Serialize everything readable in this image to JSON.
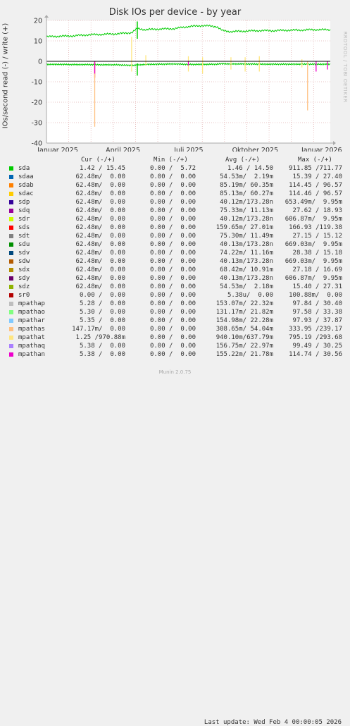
{
  "title": "Disk IOs per device - by year",
  "ylabel": "IOs/second read (-) / write (+)",
  "watermark": "RRDTOOL / TOBI OETIKER",
  "legend_header": {
    "cur": "Cur (-/+)",
    "min": "Min (-/+)",
    "avg": "Avg (-/+)",
    "max": "Max (-/+)"
  },
  "legend": [
    {
      "name": "sda",
      "color": "#00cc00",
      "cur": "1.42 / 15.45",
      "min": "0.00 /  5.72",
      "avg": "1.46 / 14.50",
      "max": "911.85 /711.77"
    },
    {
      "name": "sdaa",
      "color": "#0066b3",
      "cur": "62.48m/  0.00",
      "min": "0.00 /  0.00",
      "avg": "54.53m/  2.19m",
      "max": "15.39 / 27.40"
    },
    {
      "name": "sdab",
      "color": "#ff8000",
      "cur": "62.48m/  0.00",
      "min": "0.00 /  0.00",
      "avg": "85.19m/ 60.35m",
      "max": "114.45 / 96.57"
    },
    {
      "name": "sdac",
      "color": "#ffcc00",
      "cur": "62.48m/  0.00",
      "min": "0.00 /  0.00",
      "avg": "85.13m/ 60.27m",
      "max": "114.46 / 96.57"
    },
    {
      "name": "sdp",
      "color": "#330099",
      "cur": "62.48m/  0.00",
      "min": "0.00 /  0.00",
      "avg": "40.12m/173.28n",
      "max": "653.49m/  9.95m"
    },
    {
      "name": "sdq",
      "color": "#990099",
      "cur": "62.48m/  0.00",
      "min": "0.00 /  0.00",
      "avg": "75.33m/ 11.13m",
      "max": "27.62 / 18.93"
    },
    {
      "name": "sdr",
      "color": "#ccff00",
      "cur": "62.48m/  0.00",
      "min": "0.00 /  0.00",
      "avg": "40.12m/173.28n",
      "max": "606.87m/  9.95m"
    },
    {
      "name": "sds",
      "color": "#ff0000",
      "cur": "62.48m/  0.00",
      "min": "0.00 /  0.00",
      "avg": "159.65m/ 27.01m",
      "max": "166.93 /119.38"
    },
    {
      "name": "sdt",
      "color": "#808080",
      "cur": "62.48m/  0.00",
      "min": "0.00 /  0.00",
      "avg": "75.30m/ 11.49m",
      "max": "27.15 / 15.12"
    },
    {
      "name": "sdu",
      "color": "#008f00",
      "cur": "62.48m/  0.00",
      "min": "0.00 /  0.00",
      "avg": "40.13m/173.28n",
      "max": "669.03m/  9.95m"
    },
    {
      "name": "sdv",
      "color": "#00487d",
      "cur": "62.48m/  0.00",
      "min": "0.00 /  0.00",
      "avg": "74.22m/ 11.16m",
      "max": "28.38 / 15.18"
    },
    {
      "name": "sdw",
      "color": "#b35a00",
      "cur": "62.48m/  0.00",
      "min": "0.00 /  0.00",
      "avg": "40.13m/173.28n",
      "max": "669.03m/  9.95m"
    },
    {
      "name": "sdx",
      "color": "#b38f00",
      "cur": "62.48m/  0.00",
      "min": "0.00 /  0.00",
      "avg": "68.42m/ 10.91m",
      "max": "27.18 / 16.69"
    },
    {
      "name": "sdy",
      "color": "#6b006b",
      "cur": "62.48m/  0.00",
      "min": "0.00 /  0.00",
      "avg": "40.13m/173.28n",
      "max": "606.87m/  9.95m"
    },
    {
      "name": "sdz",
      "color": "#8fb300",
      "cur": "62.48m/  0.00",
      "min": "0.00 /  0.00",
      "avg": "54.53m/  2.18m",
      "max": "15.40 / 27.31"
    },
    {
      "name": "sr0",
      "color": "#b30000",
      "cur": "0.00 /  0.00",
      "min": "0.00 /  0.00",
      "avg": "5.38u/  0.00",
      "max": "100.88m/  0.00"
    },
    {
      "name": "mpathap",
      "color": "#bebebe",
      "cur": "5.28 /  0.00",
      "min": "0.00 /  0.00",
      "avg": "153.07m/ 22.32m",
      "max": "97.84 / 30.40"
    },
    {
      "name": "mpathao",
      "color": "#80ff80",
      "cur": "5.30 /  0.00",
      "min": "0.00 /  0.00",
      "avg": "131.17m/ 21.82m",
      "max": "97.58 / 33.38"
    },
    {
      "name": "mpathar",
      "color": "#80c9ff",
      "cur": "5.35 /  0.00",
      "min": "0.00 /  0.00",
      "avg": "154.98m/ 22.28m",
      "max": "97.93 / 37.87"
    },
    {
      "name": "mpathas",
      "color": "#ffc080",
      "cur": "147.17m/  0.00",
      "min": "0.00 /  0.00",
      "avg": "308.65m/ 54.04m",
      "max": "333.95 /239.17"
    },
    {
      "name": "mpathat",
      "color": "#ffe680",
      "cur": "1.25 /970.88m",
      "min": "0.00 /  0.00",
      "avg": "940.10m/637.79m",
      "max": "795.19 /293.68"
    },
    {
      "name": "mpathaq",
      "color": "#aa80ff",
      "cur": "5.38 /  0.00",
      "min": "0.00 /  0.00",
      "avg": "156.75m/ 22.97m",
      "max": "99.49 / 30.25"
    },
    {
      "name": "mpathan",
      "color": "#ee00cc",
      "cur": "5.38 /  0.00",
      "min": "0.00 /  0.00",
      "avg": "155.22m/ 21.78m",
      "max": "114.74 / 30.56"
    }
  ],
  "last_update": "Last update: Wed Feb  4 00:00:05 2026",
  "munin_version": "Munin 2.0.75",
  "chart_data": {
    "type": "line",
    "title": "Disk IOs per device - by year",
    "ylabel": "IOs/second read (-) / write (+)",
    "ylim": [
      -40,
      20
    ],
    "yticks": [
      -40,
      -30,
      -20,
      -10,
      0,
      10,
      20
    ],
    "xticks": [
      "Januar 2025",
      "April 2025",
      "Juli 2025",
      "Oktober 2025",
      "Januar 2026"
    ],
    "grid": true,
    "series": [
      {
        "name": "sda",
        "color": "#00cc00",
        "x": [
          0,
          0.05,
          0.1,
          0.15,
          0.2,
          0.25,
          0.3,
          0.32,
          0.35,
          0.4,
          0.45,
          0.5,
          0.55,
          0.6,
          0.62,
          0.65,
          0.7,
          0.75,
          0.8,
          0.85,
          0.9,
          0.95,
          1.0
        ],
        "write": [
          12,
          12.3,
          12.5,
          13,
          13.2,
          13.5,
          14,
          16,
          15.5,
          15.8,
          16,
          17,
          17.5,
          17,
          15,
          14.5,
          14.8,
          15,
          15,
          15.2,
          15.3,
          15.5,
          15.45
        ],
        "read": [
          -1.5,
          -1.5,
          -1.6,
          -1.6,
          -1.7,
          -1.7,
          -2,
          -1.8,
          -1.5,
          -1.4,
          -1.3,
          -1.5,
          -1.5,
          -1.4,
          -1.2,
          -1.3,
          -1.3,
          -1.4,
          -1.4,
          -1.4,
          -1.4,
          -1.4,
          -1.42
        ]
      },
      {
        "name": "mpathat",
        "color": "#ffe680",
        "x": [
          0.3,
          0.35,
          0.5,
          0.55,
          0.65,
          0.7,
          0.75,
          0.9
        ],
        "write": [
          12,
          3,
          2.5,
          2,
          2,
          2,
          2.5,
          1
        ],
        "read": [
          -5,
          -2,
          -5,
          -6,
          -4,
          -5,
          -5,
          -3
        ]
      },
      {
        "name": "sds",
        "color": "#ff0000",
        "x": [
          0.17
        ],
        "write": [
          0
        ],
        "read": [
          -8
        ]
      },
      {
        "name": "mpathas",
        "color": "#ffc080",
        "x": [
          0.17,
          0.92
        ],
        "write": [
          0,
          0
        ],
        "read": [
          -32,
          -24
        ]
      },
      {
        "name": "mpathan",
        "color": "#ee00cc",
        "x": [
          0.17,
          0.5,
          0.95,
          0.99
        ],
        "write": [
          0,
          0,
          0,
          0
        ],
        "read": [
          -6,
          -2,
          -5,
          -4
        ]
      }
    ]
  }
}
